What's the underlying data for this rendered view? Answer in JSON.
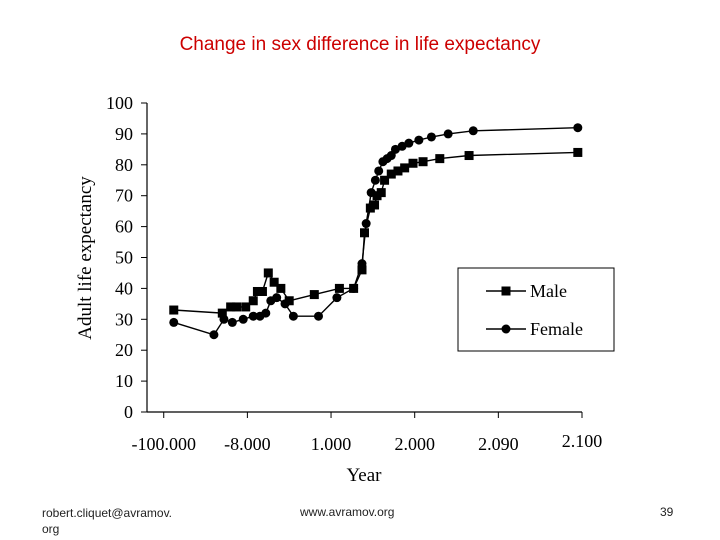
{
  "slide": {
    "title": "Change in sex difference in life expectancy",
    "footer_left": "robert.cliquet@avramov.\norg",
    "footer_center": "www.avramov.org",
    "page_number": "39"
  },
  "colors": {
    "title": "#cc0000",
    "ink": "#000000"
  },
  "chart_data": {
    "type": "line",
    "title": "",
    "xlabel": "Year",
    "ylabel": "Adult life expectancy",
    "ylim": [
      0,
      100
    ],
    "yticks": [
      0,
      10,
      20,
      30,
      40,
      50,
      60,
      70,
      80,
      90,
      100
    ],
    "xtick_labels": [
      "-100.000",
      "-8.000",
      "1.000",
      "2.000",
      "2.090",
      "2.100"
    ],
    "xtick_positions": [
      0,
      1,
      2,
      3,
      4,
      5
    ],
    "xlim": [
      -0.2,
      5.0
    ],
    "legend_position": "lower-right",
    "grid": false,
    "series": [
      {
        "name": "Male",
        "marker": "square",
        "points": [
          [
            0.12,
            33
          ],
          [
            0.7,
            32
          ],
          [
            0.8,
            34
          ],
          [
            0.87,
            34
          ],
          [
            0.98,
            34
          ],
          [
            1.07,
            36
          ],
          [
            1.12,
            39
          ],
          [
            1.18,
            39
          ],
          [
            1.25,
            45
          ],
          [
            1.32,
            42
          ],
          [
            1.4,
            40
          ],
          [
            1.5,
            36
          ],
          [
            1.8,
            38
          ],
          [
            2.1,
            40
          ],
          [
            2.27,
            40
          ],
          [
            2.37,
            46
          ],
          [
            2.4,
            58
          ],
          [
            2.47,
            66
          ],
          [
            2.52,
            67
          ],
          [
            2.55,
            70
          ],
          [
            2.6,
            71
          ],
          [
            2.64,
            75
          ],
          [
            2.72,
            77
          ],
          [
            2.8,
            78
          ],
          [
            2.88,
            79
          ],
          [
            2.98,
            80.5
          ],
          [
            3.1,
            81
          ],
          [
            3.3,
            82
          ],
          [
            3.65,
            83
          ],
          [
            4.95,
            84
          ]
        ]
      },
      {
        "name": "Female",
        "marker": "circle",
        "points": [
          [
            0.12,
            29
          ],
          [
            0.6,
            25
          ],
          [
            0.72,
            30
          ],
          [
            0.82,
            29
          ],
          [
            0.95,
            30
          ],
          [
            1.07,
            31
          ],
          [
            1.15,
            31
          ],
          [
            1.22,
            32
          ],
          [
            1.28,
            36
          ],
          [
            1.35,
            37
          ],
          [
            1.45,
            35
          ],
          [
            1.55,
            31
          ],
          [
            1.85,
            31
          ],
          [
            2.07,
            37
          ],
          [
            2.27,
            40
          ],
          [
            2.37,
            48
          ],
          [
            2.42,
            61
          ],
          [
            2.48,
            71
          ],
          [
            2.53,
            75
          ],
          [
            2.57,
            78
          ],
          [
            2.62,
            81
          ],
          [
            2.67,
            82
          ],
          [
            2.72,
            83
          ],
          [
            2.77,
            85
          ],
          [
            2.85,
            86
          ],
          [
            2.93,
            87
          ],
          [
            3.05,
            88
          ],
          [
            3.2,
            89
          ],
          [
            3.4,
            90
          ],
          [
            3.7,
            91
          ],
          [
            4.95,
            92
          ]
        ]
      }
    ]
  }
}
